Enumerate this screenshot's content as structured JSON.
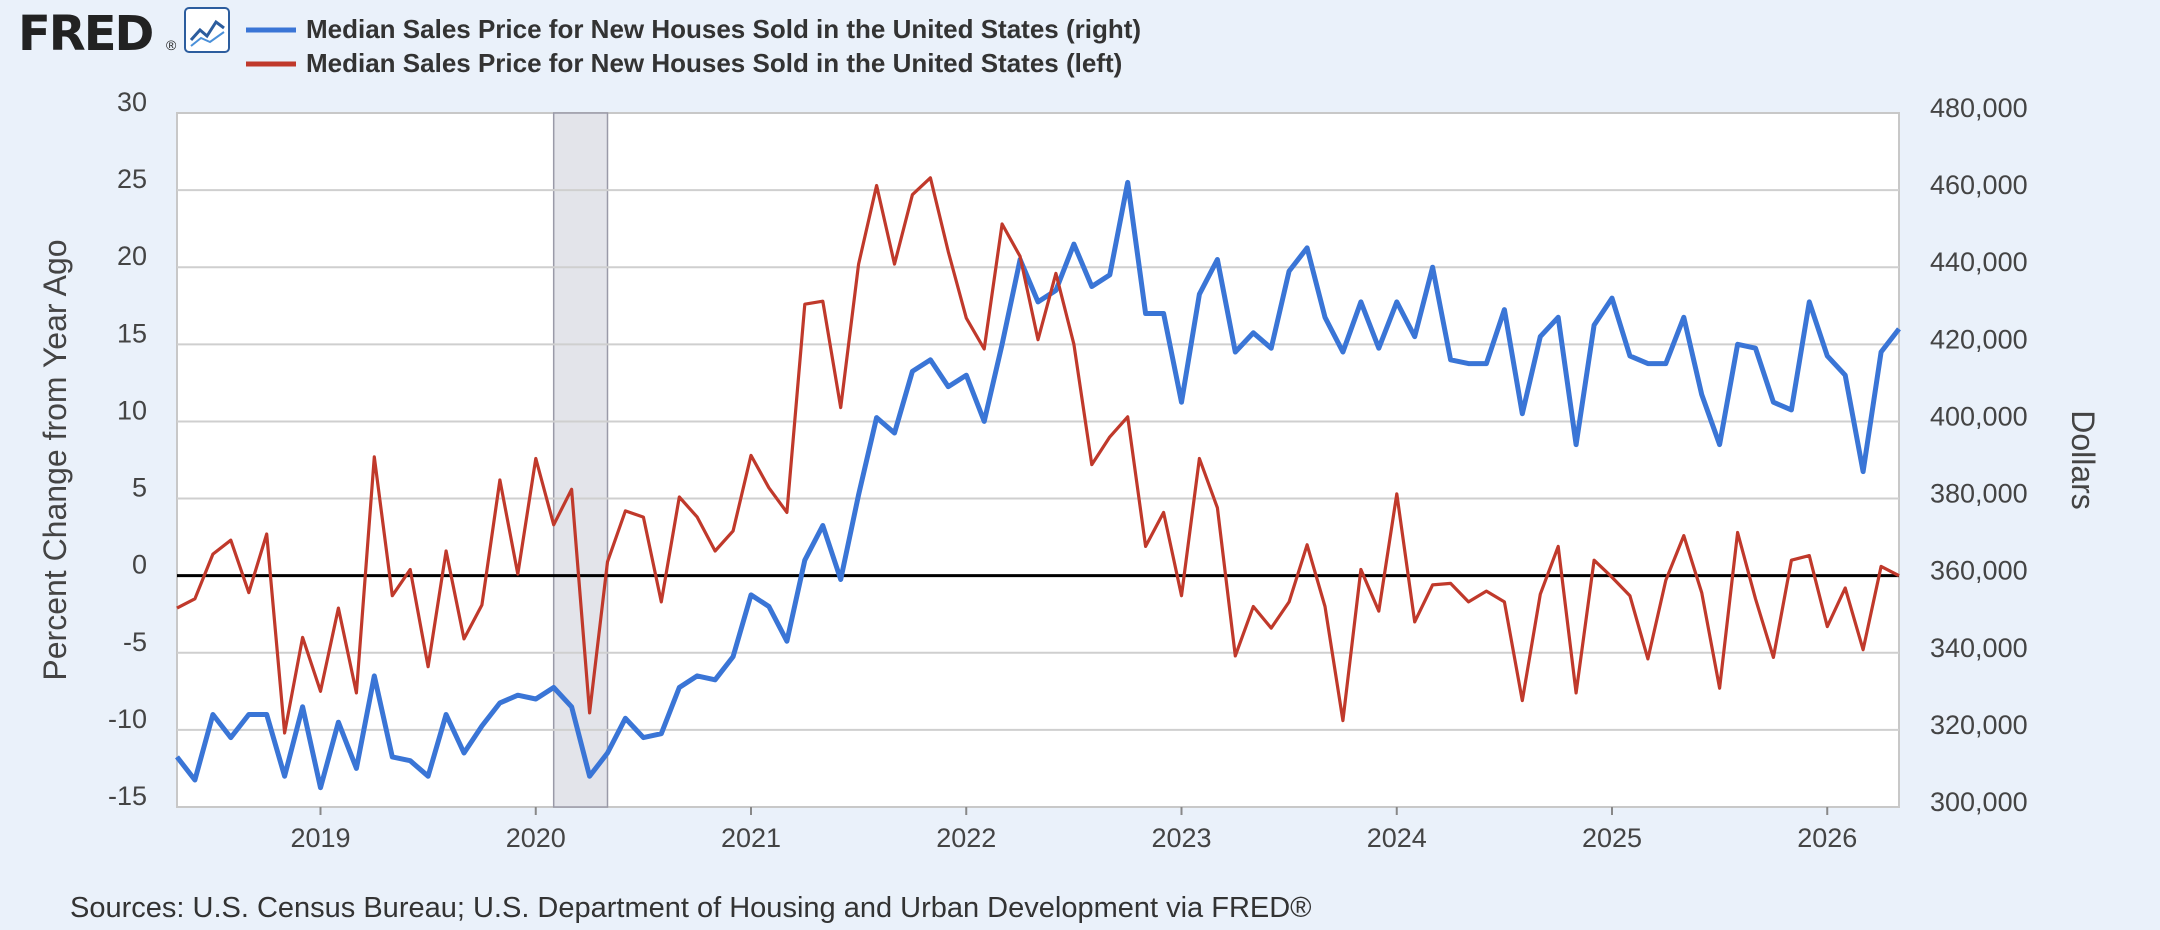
{
  "logo": {
    "text": "FRED",
    "registered_mark": "®",
    "icon": "line-chart-icon"
  },
  "legend": [
    {
      "label": "Median Sales Price for New Houses Sold in the United States (right)",
      "color": "#3a75d6"
    },
    {
      "label": "Median Sales Price for New Houses Sold in the United States (left)",
      "color": "#c0392b"
    }
  ],
  "source": "Sources: U.S. Census Bureau; U.S. Department of Housing and Urban Development via FRED®",
  "chart_data": {
    "type": "line",
    "x_start": "2018-05",
    "x_end": "2026-05",
    "x_ticks": [
      "2019",
      "2020",
      "2021",
      "2022",
      "2023",
      "2024",
      "2025",
      "2026"
    ],
    "y_left": {
      "label": "Percent Change from Year Ago",
      "lim": [
        -15,
        30
      ],
      "ticks": [
        "-15",
        "-10",
        "-5",
        "0",
        "5",
        "10",
        "15",
        "20",
        "25",
        "30"
      ]
    },
    "y_right": {
      "label": "Dollars",
      "lim": [
        300000,
        480000
      ],
      "ticks": [
        "300,000",
        "320,000",
        "340,000",
        "360,000",
        "380,000",
        "400,000",
        "420,000",
        "440,000",
        "460,000",
        "480,000"
      ]
    },
    "recession": {
      "start": "2020-02",
      "end": "2020-04"
    },
    "grid": true,
    "legend_position": "top",
    "series": [
      {
        "name": "Median Sales Price for New Houses Sold in the United States (right)",
        "axis": "right",
        "color": "#3a75d6",
        "start": "2018-05",
        "values": [
          313000,
          307000,
          324000,
          318000,
          324000,
          324000,
          308000,
          326000,
          305000,
          322000,
          310000,
          334000,
          313000,
          312000,
          308000,
          324000,
          314000,
          321000,
          327000,
          329000,
          328000,
          331000,
          326000,
          308000,
          314000,
          323000,
          318000,
          319000,
          331000,
          334000,
          333000,
          339000,
          355000,
          352000,
          343000,
          364000,
          373000,
          359000,
          381000,
          401000,
          397000,
          413000,
          416000,
          409000,
          412000,
          400000,
          420000,
          442000,
          431000,
          434000,
          446000,
          435000,
          438000,
          462000,
          428000,
          428000,
          405000,
          433000,
          442000,
          418000,
          423000,
          419000,
          439000,
          445000,
          427000,
          418000,
          431000,
          419000,
          431000,
          422000,
          440000,
          416000,
          415000,
          415000,
          429000,
          402000,
          422000,
          427000,
          394000,
          425000,
          432000,
          417000,
          415000,
          415000,
          427000,
          407000,
          394000,
          420000,
          419000,
          405000,
          403000,
          431000,
          417000,
          412000,
          387000,
          418000,
          424000
        ]
      },
      {
        "name": "Median Sales Price for New Houses Sold in the United States (left)",
        "axis": "left",
        "color": "#c0392b",
        "start": "2018-05",
        "values": [
          -2.1,
          -1.5,
          1.4,
          2.3,
          -1.1,
          2.7,
          -10.2,
          -4.0,
          -7.5,
          -2.1,
          -7.6,
          7.7,
          -1.3,
          0.4,
          -5.9,
          1.6,
          -4.1,
          -1.9,
          6.2,
          0.1,
          7.6,
          3.3,
          5.6,
          -8.9,
          0.9,
          4.2,
          3.8,
          -1.7,
          5.1,
          3.8,
          1.6,
          2.9,
          7.8,
          5.7,
          4.1,
          17.6,
          17.8,
          10.9,
          20.2,
          25.3,
          20.2,
          24.7,
          25.8,
          21.0,
          16.7,
          14.7,
          22.8,
          20.7,
          15.3,
          19.6,
          15.0,
          7.2,
          9.0,
          10.3,
          1.9,
          4.1,
          -1.3,
          7.6,
          4.4,
          -5.2,
          -2.0,
          -3.4,
          -1.7,
          2.0,
          -2.0,
          -9.4,
          0.4,
          -2.3,
          5.3,
          -3.0,
          -0.6,
          -0.5,
          -1.7,
          -1.0,
          -1.7,
          -8.1,
          -1.2,
          1.9,
          -7.6,
          1.0,
          -0.1,
          -1.3,
          -5.4,
          -0.3,
          2.6,
          -1.1,
          -7.3,
          2.8,
          -1.5,
          -5.3,
          1.0,
          1.3,
          -3.3,
          -0.8,
          -4.8,
          0.6,
          0.0
        ]
      }
    ]
  }
}
